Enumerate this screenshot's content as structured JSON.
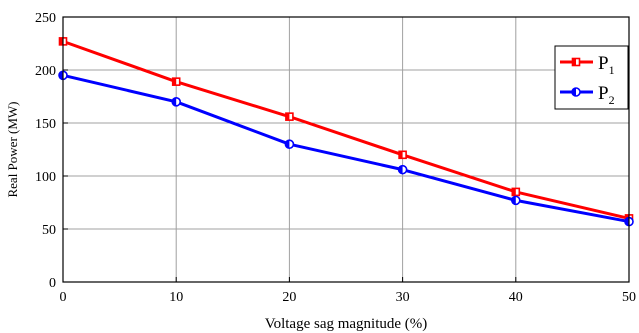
{
  "chart_data": {
    "type": "line",
    "title": "",
    "xlabel": "Voltage sag magnitude (%)",
    "ylabel": "Real Power (MW)",
    "x": [
      0,
      10,
      20,
      30,
      40,
      50
    ],
    "xlim": [
      0,
      50
    ],
    "ylim": [
      0,
      250
    ],
    "xticks": [
      "0",
      "10",
      "20",
      "30",
      "40",
      "50"
    ],
    "yticks": [
      "0",
      "50",
      "100",
      "150",
      "200",
      "250"
    ],
    "grid": true,
    "legend_position": "top-right",
    "series": [
      {
        "name": "P",
        "subscript": "1",
        "color": "#ff0000",
        "marker": "square",
        "values": [
          227,
          189,
          156,
          120,
          85,
          60
        ]
      },
      {
        "name": "P",
        "subscript": "2",
        "color": "#0000ff",
        "marker": "circle",
        "values": [
          195,
          170,
          130,
          106,
          77,
          57
        ]
      }
    ]
  }
}
